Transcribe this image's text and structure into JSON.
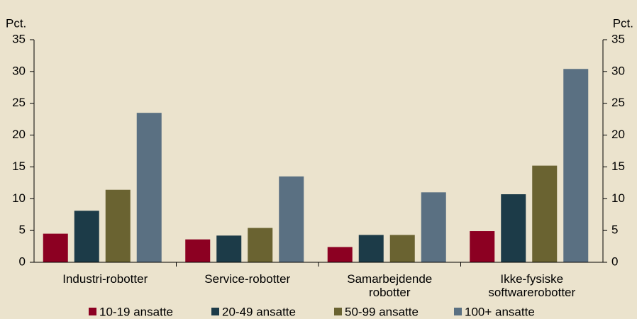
{
  "chart_data": {
    "type": "bar",
    "ylabel": "Pct.",
    "y2label": "Pct.",
    "categories": [
      "Industri-robotter",
      "Service-robotter",
      "Samarbejdende robotter",
      "Ikke-fysiske softwarerobotter"
    ],
    "series": [
      {
        "name": "10-19 ansatte",
        "color": "#8c0022",
        "values": [
          4.5,
          3.6,
          2.4,
          4.9
        ]
      },
      {
        "name": "20-49 ansatte",
        "color": "#1c3b48",
        "values": [
          8.1,
          4.2,
          4.3,
          10.7
        ]
      },
      {
        "name": "50-99 ansatte",
        "color": "#6a6331",
        "values": [
          11.4,
          5.4,
          4.3,
          15.2
        ]
      },
      {
        "name": "100+ ansatte",
        "color": "#5a7082",
        "values": [
          23.5,
          13.5,
          11.0,
          30.4
        ]
      }
    ],
    "ylim": [
      0,
      35
    ],
    "yticks": [
      0,
      5,
      10,
      15,
      20,
      25,
      30,
      35
    ],
    "y2lim": [
      0,
      35
    ],
    "y2ticks": [
      0,
      5,
      10,
      15,
      20,
      25,
      30,
      35
    ],
    "grid": false,
    "legend": "bottom"
  }
}
